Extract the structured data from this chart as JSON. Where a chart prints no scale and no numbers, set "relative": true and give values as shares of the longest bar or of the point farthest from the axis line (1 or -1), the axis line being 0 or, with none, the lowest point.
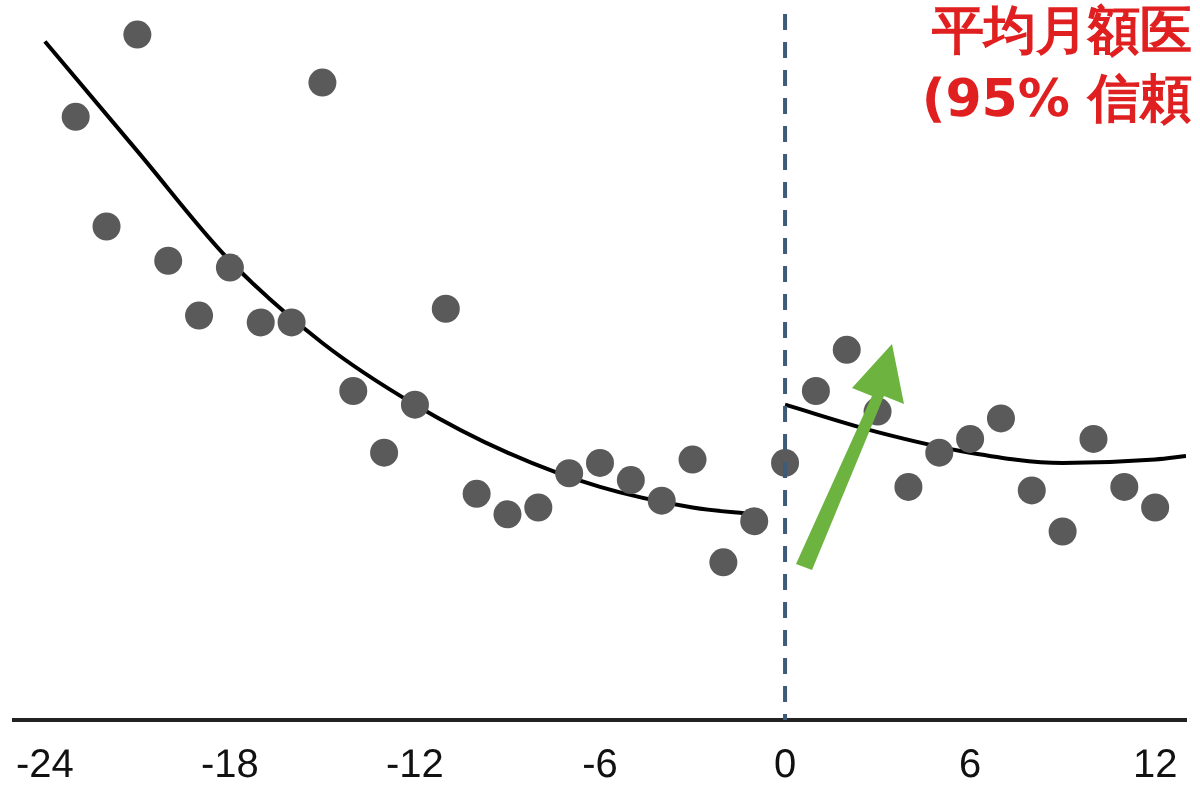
{
  "chart_data": {
    "type": "line",
    "relative": true,
    "annotations": [
      "平均月額医",
      "(95% 信頼"
    ],
    "xlim": [
      -25,
      13
    ],
    "xticks": [
      -24,
      -18,
      -12,
      -6,
      0,
      6,
      12
    ],
    "legend": false,
    "grid": false,
    "ref_lines": [
      {
        "axis": "x",
        "value": 0,
        "color": "#3d5a7a",
        "line_style": "dashed"
      }
    ],
    "series": [
      {
        "type": "scatter",
        "color": "#5a5a5a",
        "marker": "circle",
        "x": [
          -23,
          -22,
          -21,
          -20,
          -19,
          -18,
          -17,
          -16,
          -15,
          -14,
          -13,
          -12,
          -11,
          -10,
          -9,
          -8,
          -7,
          -6,
          -5,
          -4,
          -3,
          -2,
          -1,
          0,
          1,
          2,
          3,
          4,
          5,
          6,
          7,
          8,
          9,
          10,
          11,
          12
        ],
        "values": [
          0.88,
          0.72,
          1,
          0.67,
          0.59,
          0.66,
          0.58,
          0.58,
          0.93,
          0.48,
          0.39,
          0.46,
          0.6,
          0.33,
          0.3,
          0.31,
          0.36,
          0.375,
          0.35,
          0.32,
          0.38,
          0.23,
          0.29,
          0.375,
          0.48,
          0.54,
          0.45,
          0.34,
          0.39,
          0.41,
          0.44,
          0.335,
          0.275,
          0.41,
          0.34,
          0.31
        ]
      },
      {
        "color": "#000000",
        "marker": "none",
        "x": [
          -24,
          -21,
          -18,
          -15,
          -12,
          -9,
          -6,
          -3,
          -1
        ],
        "values": [
          0.99,
          0.83,
          0.67,
          0.55,
          0.46,
          0.39,
          0.34,
          0.31,
          0.3
        ]
      },
      {
        "color": "#000000",
        "marker": "none",
        "x": [
          0,
          3,
          6,
          9,
          12,
          13
        ],
        "values": [
          0.46,
          0.42,
          0.39,
          0.375,
          0.38,
          0.385
        ]
      }
    ]
  }
}
